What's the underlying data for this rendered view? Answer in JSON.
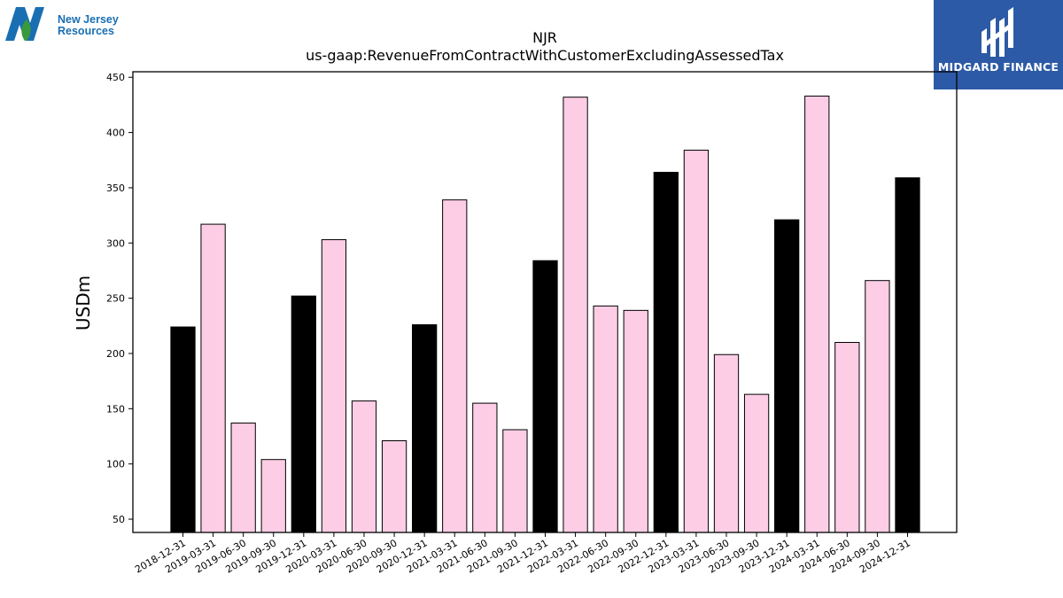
{
  "logos": {
    "left": {
      "line1": "New Jersey",
      "line2": "Resources",
      "primary_color": "#1a6fb2",
      "leaf_color": "#3a9a3a"
    },
    "right": {
      "name": "MIDGARD FINANCE",
      "background": "#2d5aa6"
    }
  },
  "chart_data": {
    "type": "bar",
    "title": "NJR",
    "subtitle": "us-gaap:RevenueFromContractWithCustomerExcludingAssessedTax",
    "xlabel": "",
    "ylabel": "USDm",
    "ylim": [
      38,
      455
    ],
    "yticks": [
      50,
      100,
      150,
      200,
      250,
      300,
      350,
      400,
      450
    ],
    "grid": false,
    "categories": [
      "2018-12-31",
      "2019-03-31",
      "2019-06-30",
      "2019-09-30",
      "2019-12-31",
      "2020-03-31",
      "2020-06-30",
      "2020-09-30",
      "2020-12-31",
      "2021-03-31",
      "2021-06-30",
      "2021-09-30",
      "2021-12-31",
      "2022-03-31",
      "2022-06-30",
      "2022-09-30",
      "2022-12-31",
      "2023-03-31",
      "2023-06-30",
      "2023-09-30",
      "2023-12-31",
      "2024-03-31",
      "2024-06-30",
      "2024-09-30",
      "2024-12-31"
    ],
    "values": [
      224,
      317,
      137,
      104,
      252,
      303,
      157,
      121,
      226,
      339,
      155,
      131,
      284,
      432,
      243,
      239,
      364,
      384,
      199,
      163,
      321,
      433,
      210,
      266,
      359
    ],
    "highlight": [
      true,
      false,
      false,
      false,
      true,
      false,
      false,
      false,
      true,
      false,
      false,
      false,
      true,
      false,
      false,
      false,
      true,
      false,
      false,
      false,
      true,
      false,
      false,
      false,
      true
    ],
    "colors": {
      "highlight": "#000000",
      "default": "#fccde5",
      "edge": "#000000"
    }
  }
}
